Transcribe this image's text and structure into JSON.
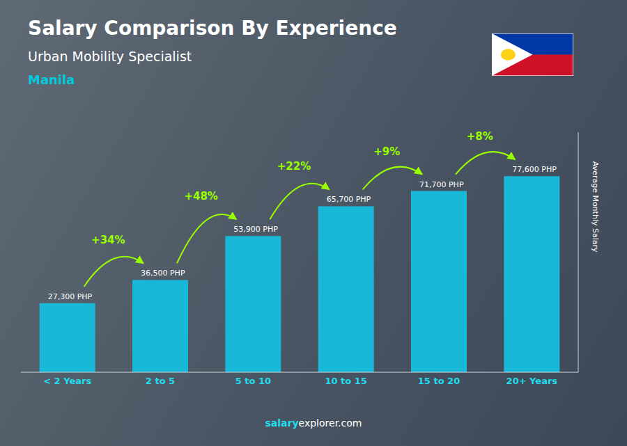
{
  "chart_data": {
    "type": "bar",
    "title": "Salary Comparison By Experience",
    "subtitle": "Urban Mobility Specialist",
    "categories": [
      "< 2 Years",
      "2 to 5",
      "5 to 10",
      "10 to 15",
      "15 to 20",
      "20+ Years"
    ],
    "values": [
      27300,
      36500,
      53900,
      65700,
      71700,
      77600
    ],
    "value_labels": [
      "27,300 PHP",
      "36,500 PHP",
      "53,900 PHP",
      "65,700 PHP",
      "71,700 PHP",
      "77,600 PHP"
    ],
    "data_labels": true,
    "color": "#1ab8d8",
    "ylabel": "Average Monthly Salary",
    "ylim": [
      0,
      95000
    ],
    "tick_labels": "x",
    "grid": false,
    "annotations": {
      "changes": [
        "+34%",
        "+48%",
        "+22%",
        "+9%",
        "+8%"
      ],
      "city": "Manila",
      "footer": [
        "salary",
        "explorer.com"
      ]
    }
  }
}
